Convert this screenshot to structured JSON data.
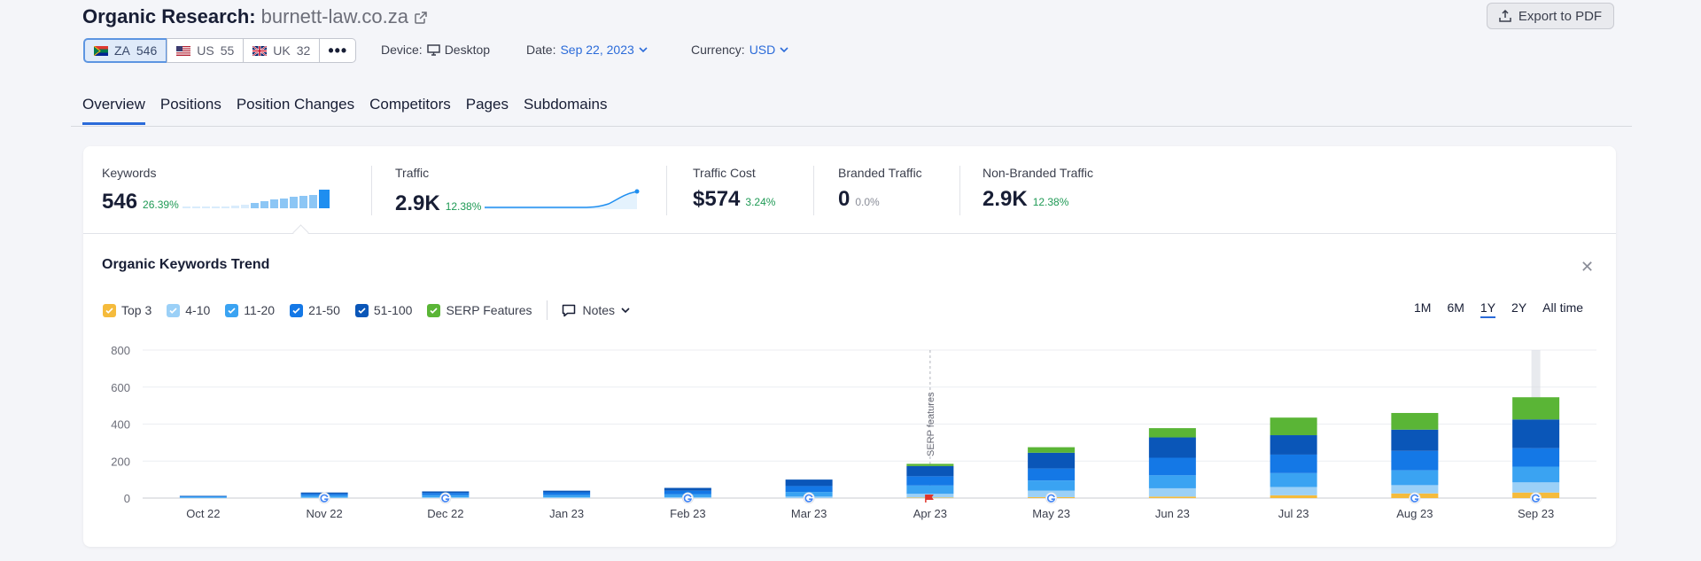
{
  "header": {
    "title": "Organic Research:",
    "domain": "burnett-law.co.za",
    "export_label": "Export to PDF"
  },
  "databases": [
    {
      "code": "ZA",
      "count": "546",
      "active": true
    },
    {
      "code": "US",
      "count": "55",
      "active": false
    },
    {
      "code": "UK",
      "count": "32",
      "active": false
    }
  ],
  "device": {
    "label": "Device:",
    "value": "Desktop"
  },
  "date": {
    "label": "Date:",
    "value": "Sep 22, 2023"
  },
  "currency": {
    "label": "Currency:",
    "value": "USD"
  },
  "tabs": [
    "Overview",
    "Positions",
    "Position Changes",
    "Competitors",
    "Pages",
    "Subdomains"
  ],
  "metrics": {
    "keywords": {
      "label": "Keywords",
      "value": "546",
      "change": "26.39%"
    },
    "traffic": {
      "label": "Traffic",
      "value": "2.9K",
      "change": "12.38%"
    },
    "traffic_cost": {
      "label": "Traffic Cost",
      "value": "$574",
      "change": "3.24%"
    },
    "branded": {
      "label": "Branded Traffic",
      "value": "0",
      "change": "0.0%"
    },
    "nonbranded": {
      "label": "Non-Branded Traffic",
      "value": "2.9K",
      "change": "12.38%"
    }
  },
  "trend": {
    "title": "Organic Keywords Trend",
    "legend": [
      {
        "label": "Top 3",
        "color": "#f5bb3c"
      },
      {
        "label": "4-10",
        "color": "#9bd0f7"
      },
      {
        "label": "11-20",
        "color": "#3aa3f2"
      },
      {
        "label": "21-50",
        "color": "#1478e6"
      },
      {
        "label": "51-100",
        "color": "#0a56b8"
      },
      {
        "label": "SERP Features",
        "color": "#5ab536"
      }
    ],
    "notes_label": "Notes",
    "ranges": [
      "1M",
      "6M",
      "1Y",
      "2Y",
      "All time"
    ],
    "active_range": "1Y",
    "serp_annotation": "SERP features"
  },
  "chart_data": {
    "type": "bar",
    "stacked": true,
    "categories": [
      "Oct 22",
      "Nov 22",
      "Dec 22",
      "Jan 23",
      "Feb 23",
      "Mar 23",
      "Apr 23",
      "May 23",
      "Jun 23",
      "Jul 23",
      "Aug 23",
      "Sep 23"
    ],
    "yticks": [
      0,
      200,
      400,
      600,
      800
    ],
    "ylim": [
      0,
      800
    ],
    "series": [
      {
        "name": "Top 3",
        "color": "#f5bb3c",
        "values": [
          0,
          0,
          0,
          0,
          0,
          0,
          3,
          5,
          8,
          15,
          25,
          30
        ]
      },
      {
        "name": "4-10",
        "color": "#9bd0f7",
        "values": [
          2,
          3,
          4,
          4,
          5,
          8,
          20,
          35,
          45,
          45,
          45,
          55
        ]
      },
      {
        "name": "11-20",
        "color": "#3aa3f2",
        "values": [
          5,
          10,
          12,
          12,
          15,
          25,
          45,
          55,
          70,
          75,
          80,
          85
        ]
      },
      {
        "name": "21-50",
        "color": "#1478e6",
        "values": [
          3,
          10,
          12,
          15,
          20,
          32,
          50,
          65,
          95,
          100,
          105,
          100
        ]
      },
      {
        "name": "51-100",
        "color": "#0a56b8",
        "values": [
          2,
          7,
          8,
          9,
          15,
          35,
          55,
          85,
          110,
          105,
          115,
          155
        ]
      },
      {
        "name": "SERP Features",
        "color": "#5ab536",
        "values": [
          0,
          0,
          0,
          0,
          0,
          0,
          12,
          30,
          50,
          95,
          90,
          120
        ]
      }
    ],
    "grid": true,
    "annotation_at": "Apr 23",
    "google_markers": [
      "Nov 22",
      "Dec 22",
      "Feb 23",
      "Mar 23",
      "May 23",
      "Aug 23",
      "Sep 23"
    ],
    "flag_marker": "Apr 23"
  }
}
